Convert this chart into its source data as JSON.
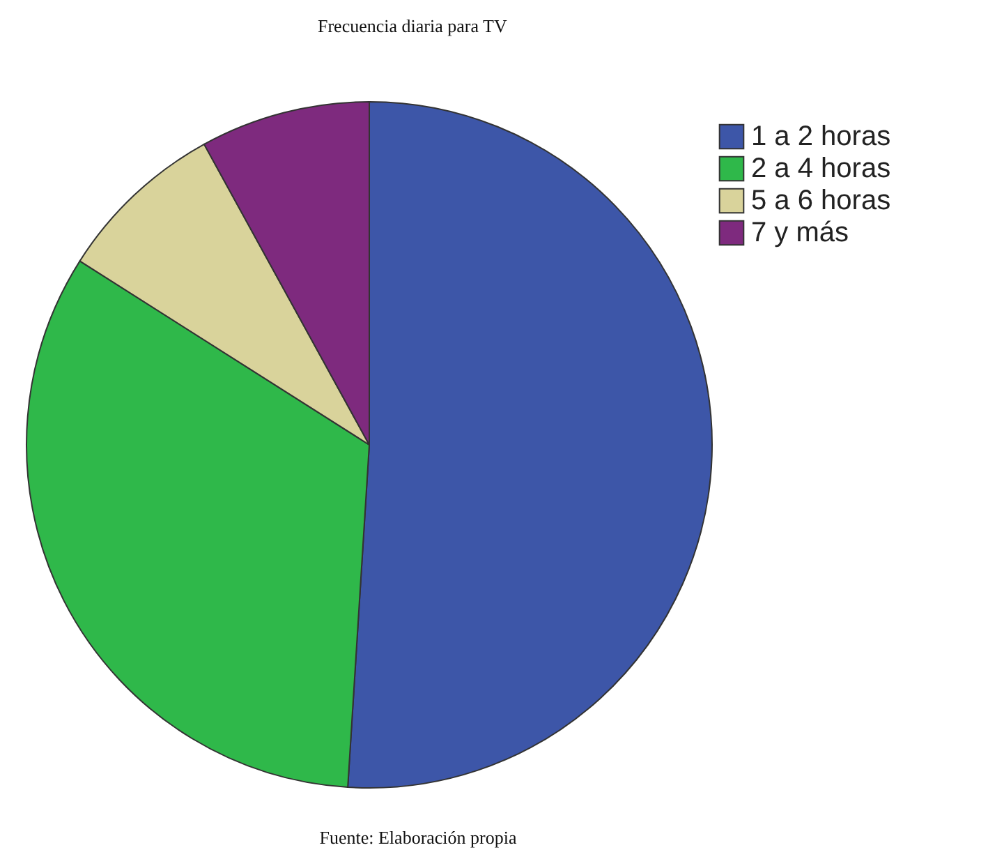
{
  "chart_data": {
    "type": "pie",
    "title": "Frecuencia diaria para TV",
    "categories": [
      "1 a 2 horas",
      "2 a 4 horas",
      "5 a 6 horas",
      "7 y más"
    ],
    "values": [
      51,
      33,
      8,
      8
    ],
    "colors": [
      "#3d56a8",
      "#2fb84a",
      "#d9d39b",
      "#7e2a7e"
    ],
    "legend": "top right",
    "annotations": [
      "Fuente: Elaboración propia"
    ]
  }
}
